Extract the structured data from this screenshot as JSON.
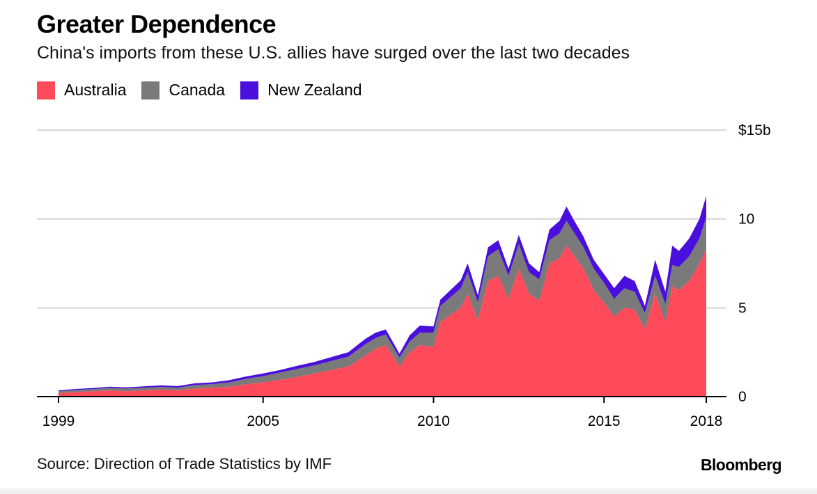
{
  "title": "Greater Dependence",
  "subtitle": "China's imports from these U.S. allies have surged over the last two decades",
  "legend": [
    {
      "label": "Australia",
      "color": "#ff4a5a"
    },
    {
      "label": "Canada",
      "color": "#7a7a7a"
    },
    {
      "label": "New Zealand",
      "color": "#4a0fdc"
    }
  ],
  "source": "Source: Direction of Trade Statistics by IMF",
  "brand": "Bloomberg",
  "chart_data": {
    "type": "area",
    "stacked": true,
    "title": "Greater Dependence",
    "xlim": [
      1999,
      2018
    ],
    "ylim": [
      0,
      15
    ],
    "x_ticks": [
      {
        "value": 1999,
        "label": "1999"
      },
      {
        "value": 2005,
        "label": "2005"
      },
      {
        "value": 2010,
        "label": "2010"
      },
      {
        "value": 2015,
        "label": "2015"
      },
      {
        "value": 2018,
        "label": "2018"
      }
    ],
    "y_ticks": [
      {
        "value": 0,
        "label": "0"
      },
      {
        "value": 5,
        "label": "5"
      },
      {
        "value": 10,
        "label": "10"
      },
      {
        "value": 15,
        "label": "$15b"
      }
    ],
    "grid": true,
    "legend_position": "top-left",
    "x": [
      1999.0,
      1999.5,
      2000.0,
      2000.5,
      2001.0,
      2001.5,
      2002.0,
      2002.5,
      2003.0,
      2003.5,
      2004.0,
      2004.5,
      2005.0,
      2005.5,
      2006.0,
      2006.5,
      2007.0,
      2007.5,
      2008.0,
      2008.3,
      2008.6,
      2009.0,
      2009.3,
      2009.6,
      2010.0,
      2010.2,
      2010.5,
      2010.8,
      2011.0,
      2011.3,
      2011.6,
      2011.9,
      2012.2,
      2012.5,
      2012.8,
      2013.1,
      2013.4,
      2013.7,
      2013.9,
      2014.1,
      2014.4,
      2014.7,
      2015.0,
      2015.3,
      2015.6,
      2015.9,
      2016.2,
      2016.5,
      2016.8,
      2017.0,
      2017.2,
      2017.5,
      2017.8,
      2018.0
    ],
    "series": [
      {
        "name": "Australia",
        "values": [
          0.2,
          0.25,
          0.3,
          0.35,
          0.3,
          0.35,
          0.4,
          0.35,
          0.45,
          0.5,
          0.55,
          0.7,
          0.8,
          0.95,
          1.1,
          1.3,
          1.5,
          1.7,
          2.3,
          2.7,
          2.9,
          1.7,
          2.5,
          2.9,
          2.8,
          4.2,
          4.6,
          5.0,
          5.8,
          4.3,
          6.5,
          6.8,
          5.5,
          7.2,
          5.8,
          5.4,
          7.5,
          7.8,
          8.5,
          8.0,
          7.2,
          6.0,
          5.3,
          4.5,
          5.0,
          4.9,
          3.8,
          5.8,
          4.2,
          6.2,
          6.0,
          6.5,
          7.5,
          8.3
        ]
      },
      {
        "name": "Canada",
        "values": [
          0.1,
          0.12,
          0.12,
          0.14,
          0.15,
          0.15,
          0.15,
          0.15,
          0.2,
          0.2,
          0.25,
          0.3,
          0.35,
          0.4,
          0.45,
          0.45,
          0.5,
          0.55,
          0.65,
          0.6,
          0.6,
          0.5,
          0.6,
          0.7,
          0.8,
          0.9,
          1.0,
          1.1,
          1.2,
          1.0,
          1.4,
          1.5,
          1.3,
          1.4,
          1.2,
          1.2,
          1.3,
          1.4,
          1.4,
          1.3,
          1.2,
          1.2,
          1.1,
          1.0,
          1.1,
          1.0,
          0.9,
          1.0,
          1.0,
          1.2,
          1.3,
          1.4,
          1.4,
          1.8
        ]
      },
      {
        "name": "New Zealand",
        "values": [
          0.05,
          0.06,
          0.06,
          0.07,
          0.07,
          0.08,
          0.08,
          0.09,
          0.1,
          0.1,
          0.12,
          0.13,
          0.15,
          0.15,
          0.18,
          0.2,
          0.22,
          0.25,
          0.3,
          0.3,
          0.28,
          0.22,
          0.35,
          0.4,
          0.35,
          0.35,
          0.4,
          0.45,
          0.5,
          0.4,
          0.5,
          0.5,
          0.4,
          0.5,
          0.5,
          0.4,
          0.6,
          0.7,
          0.8,
          0.7,
          0.6,
          0.5,
          0.5,
          0.6,
          0.7,
          0.6,
          0.4,
          0.9,
          0.7,
          1.1,
          0.9,
          1.0,
          1.1,
          1.2
        ]
      }
    ]
  }
}
